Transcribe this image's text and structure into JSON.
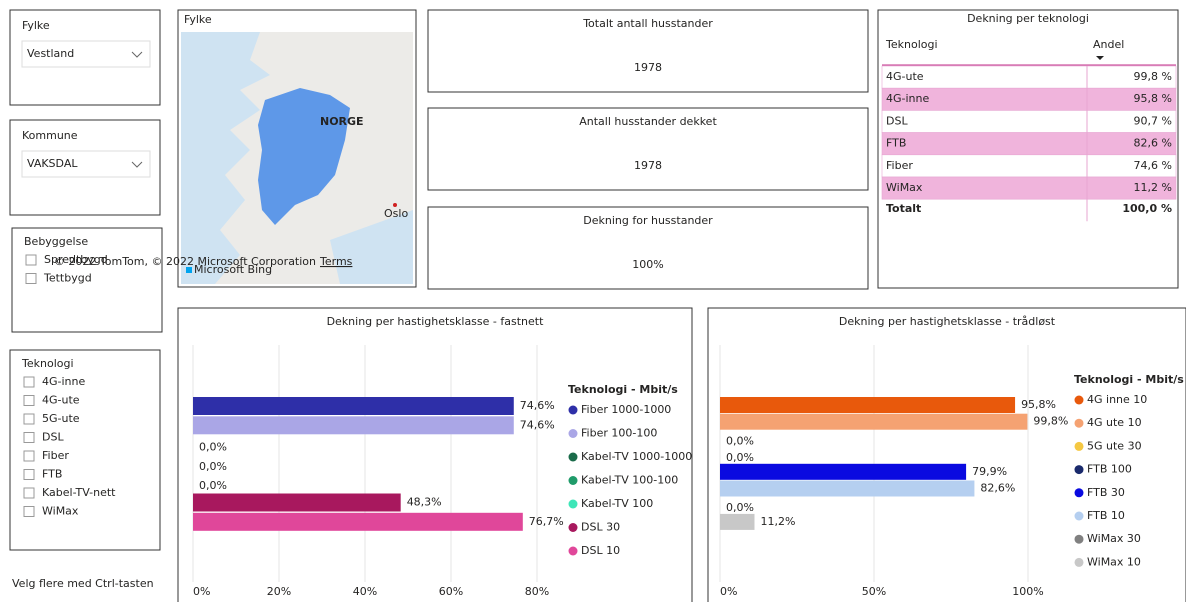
{
  "slicers": [
    {
      "title": "Fylke",
      "selected": "Vestland"
    },
    {
      "title": "Kommune",
      "selected": "VAKSDAL"
    }
  ],
  "bebyggelse": {
    "title": "Bebyggelse",
    "options": [
      "Spredtbygd",
      "Tettbygd"
    ]
  },
  "teknologi": {
    "title": "Teknologi",
    "options": [
      "4G-inne",
      "4G-ute",
      "5G-ute",
      "DSL",
      "Fiber",
      "FTB",
      "Kabel-TV-nett",
      "WiMax"
    ]
  },
  "hint": "Velg flere med Ctrl-tasten",
  "map": {
    "title": "Fylke",
    "labels": [
      "NORGE",
      "Oslo"
    ],
    "attribution": "© 2022 TomTom, © 2022 Microsoft Corporation",
    "terms": "Terms",
    "provider": "Microsoft Bing"
  },
  "cards": [
    {
      "title": "Totalt antall husstander",
      "value": "1978",
      "color": "#1f2a9a"
    },
    {
      "title": "Antall husstander dekket",
      "value": "1978",
      "color": "#1e90e8"
    },
    {
      "title": "Dekning for husstander",
      "value": "100%",
      "color": "#e040a8"
    }
  ],
  "table": {
    "title": "Dekning per teknologi",
    "columns": [
      "Teknologi",
      "Andel"
    ],
    "rows": [
      [
        "4G-ute",
        "99,8 %"
      ],
      [
        "4G-inne",
        "95,8 %"
      ],
      [
        "DSL",
        "90,7 %"
      ],
      [
        "FTB",
        "82,6 %"
      ],
      [
        "Fiber",
        "74,6 %"
      ],
      [
        "WiMax",
        "11,2 %"
      ]
    ],
    "total": [
      "Totalt",
      "100,0 %"
    ]
  },
  "chart_data": [
    {
      "type": "hbar",
      "title": "Dekning per hastighetsklasse - fastnett",
      "legend_title": "Teknologi - Mbit/s",
      "grid": true,
      "xlim": [
        0,
        85
      ],
      "xticks": [
        {
          "value": 0,
          "label": "0%"
        },
        {
          "value": 20,
          "label": "20%"
        },
        {
          "value": 40,
          "label": "40%"
        },
        {
          "value": 60,
          "label": "60%"
        },
        {
          "value": 80,
          "label": "80%"
        }
      ],
      "series": [
        {
          "name": "Fiber 1000-1000",
          "color": "#2e2fa8",
          "values": [
            74.6
          ],
          "value_labels": [
            "74,6%"
          ]
        },
        {
          "name": "Fiber 100-100",
          "color": "#aaa6e6",
          "values": [
            74.6
          ],
          "value_labels": [
            "74,6%"
          ]
        },
        {
          "name": "Kabel-TV 1000-1000",
          "color": "#1a6b4a",
          "values": [
            0
          ],
          "value_labels": [
            "0,0%"
          ]
        },
        {
          "name": "Kabel-TV 100-100",
          "color": "#1f9b6a",
          "values": [
            0
          ],
          "value_labels": [
            "0,0%"
          ]
        },
        {
          "name": "Kabel-TV 100",
          "color": "#3ee6b8",
          "values": [
            0
          ],
          "value_labels": [
            "0,0%"
          ]
        },
        {
          "name": "DSL 30",
          "color": "#a8185e",
          "values": [
            48.3
          ],
          "value_labels": [
            "48,3%"
          ]
        },
        {
          "name": "DSL 10",
          "color": "#e0479a",
          "values": [
            76.7
          ],
          "value_labels": [
            "76,7%"
          ]
        }
      ]
    },
    {
      "type": "hbar",
      "title": "Dekning per hastighetsklasse - trådløst",
      "legend_title": "Teknologi - Mbit/s",
      "grid": true,
      "xlim": [
        0,
        105
      ],
      "xticks": [
        {
          "value": 0,
          "label": "0%"
        },
        {
          "value": 50,
          "label": "50%"
        },
        {
          "value": 100,
          "label": "100%"
        }
      ],
      "series": [
        {
          "name": "4G inne 10",
          "color": "#e8590c",
          "values": [
            95.8
          ],
          "value_labels": [
            "95,8%"
          ]
        },
        {
          "name": "4G ute 10",
          "color": "#f5a272",
          "values": [
            99.8
          ],
          "value_labels": [
            "99,8%"
          ]
        },
        {
          "name": "5G ute 30",
          "color": "#f5c842",
          "values": [
            0
          ],
          "value_labels": [
            "0,0%"
          ]
        },
        {
          "name": "FTB 100",
          "color": "#1a2a6c",
          "values": [
            0
          ],
          "value_labels": [
            "0,0%"
          ]
        },
        {
          "name": "FTB 30",
          "color": "#0a0ae0",
          "values": [
            79.9
          ],
          "value_labels": [
            "79,9%"
          ]
        },
        {
          "name": "FTB 10",
          "color": "#b5cff0",
          "values": [
            82.6
          ],
          "value_labels": [
            "82,6%"
          ]
        },
        {
          "name": "WiMax 30",
          "color": "#808080",
          "values": [
            0
          ],
          "value_labels": [
            "0,0%"
          ]
        },
        {
          "name": "WiMax 10",
          "color": "#c8c8c8",
          "values": [
            11.2
          ],
          "value_labels": [
            "11,2%"
          ]
        }
      ]
    }
  ]
}
